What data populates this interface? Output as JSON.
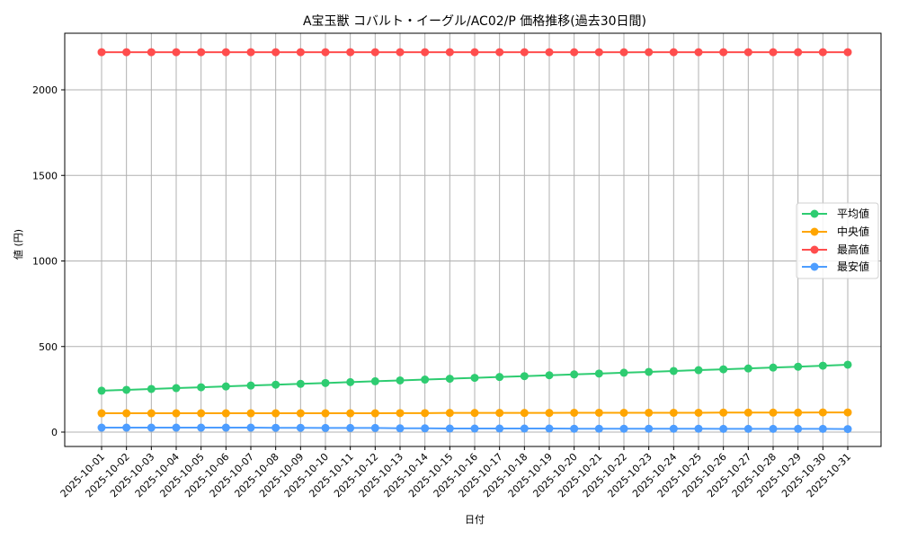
{
  "chart_data": {
    "type": "line",
    "title": "A宝玉獣 コバルト・イーグル/AC02/P 価格推移(過去30日間)",
    "xlabel": "日付",
    "ylabel": "値 (円)",
    "ylim": [
      -80,
      2330
    ],
    "yticks": [
      0,
      500,
      1000,
      1500,
      2000
    ],
    "grid": true,
    "legend_position": "center right",
    "categories": [
      "2025-10-01",
      "2025-10-02",
      "2025-10-03",
      "2025-10-04",
      "2025-10-05",
      "2025-10-06",
      "2025-10-07",
      "2025-10-08",
      "2025-10-09",
      "2025-10-10",
      "2025-10-11",
      "2025-10-12",
      "2025-10-13",
      "2025-10-14",
      "2025-10-15",
      "2025-10-16",
      "2025-10-17",
      "2025-10-18",
      "2025-10-19",
      "2025-10-20",
      "2025-10-21",
      "2025-10-22",
      "2025-10-23",
      "2025-10-24",
      "2025-10-25",
      "2025-10-26",
      "2025-10-27",
      "2025-10-28",
      "2025-10-29",
      "2025-10-30",
      "2025-10-31"
    ],
    "series": [
      {
        "name": "平均値",
        "color": "#2ecc71",
        "values": [
          242,
          247,
          252,
          257,
          262,
          267,
          272,
          277,
          282,
          287,
          292,
          297,
          302,
          307,
          312,
          317,
          322,
          327,
          332,
          337,
          342,
          347,
          352,
          357,
          362,
          367,
          372,
          377,
          382,
          388,
          394
        ]
      },
      {
        "name": "中央値",
        "color": "#ffa500",
        "values": [
          110,
          110,
          110,
          110,
          110,
          110,
          110,
          110,
          110,
          110,
          110,
          110,
          111,
          111,
          112,
          112,
          112,
          112,
          112,
          113,
          113,
          113,
          113,
          113,
          113,
          114,
          114,
          114,
          114,
          115,
          115
        ]
      },
      {
        "name": "最高値",
        "color": "#ff4d4d",
        "values": [
          2220,
          2220,
          2220,
          2220,
          2220,
          2220,
          2220,
          2220,
          2220,
          2220,
          2220,
          2220,
          2220,
          2220,
          2220,
          2220,
          2220,
          2220,
          2220,
          2220,
          2220,
          2220,
          2220,
          2220,
          2220,
          2220,
          2220,
          2220,
          2220,
          2220,
          2220
        ]
      },
      {
        "name": "最安値",
        "color": "#4d9dff",
        "values": [
          26,
          26,
          26,
          26,
          26,
          26,
          26,
          25,
          25,
          24,
          24,
          24,
          22,
          22,
          21,
          21,
          21,
          21,
          21,
          20,
          20,
          20,
          20,
          20,
          20,
          19,
          19,
          19,
          19,
          19,
          18
        ]
      }
    ]
  }
}
